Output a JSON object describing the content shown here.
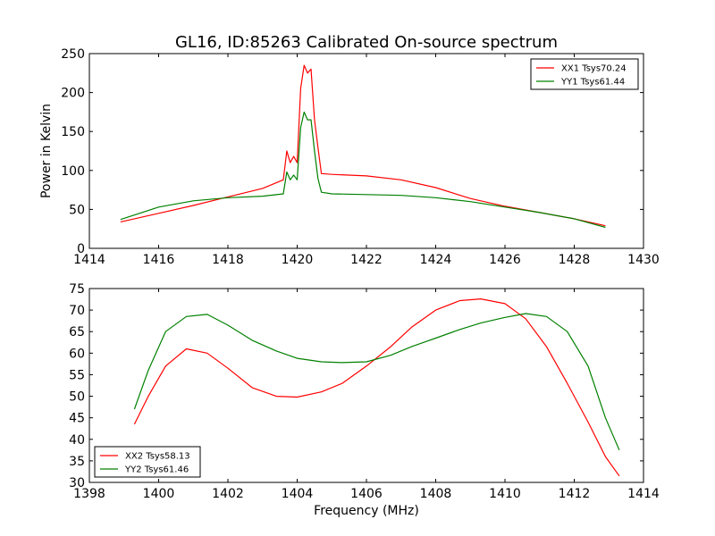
{
  "chart_data": [
    {
      "type": "line",
      "title": "GL16, ID:85263 Calibrated On-source spectrum",
      "xlabel": "",
      "ylabel": "Power in Kelvin",
      "xlim": [
        1414,
        1430
      ],
      "ylim": [
        0,
        250
      ],
      "xticks": [
        "1414",
        "1416",
        "1418",
        "1420",
        "1422",
        "1424",
        "1426",
        "1428",
        "1430"
      ],
      "yticks": [
        "0",
        "50",
        "100",
        "150",
        "200",
        "250"
      ],
      "legend_position": "top-right",
      "grid": false,
      "series": [
        {
          "name": "XX1 Tsys70.24",
          "color": "#ff0000",
          "x": [
            1414.9,
            1416,
            1417,
            1418,
            1419,
            1419.6,
            1419.7,
            1419.8,
            1419.9,
            1420.0,
            1420.1,
            1420.2,
            1420.3,
            1420.4,
            1420.5,
            1420.6,
            1420.7,
            1421,
            1422,
            1423,
            1424,
            1425,
            1426,
            1427,
            1428,
            1428.9
          ],
          "y": [
            34,
            45,
            55,
            66,
            77,
            88,
            125,
            110,
            118,
            110,
            205,
            235,
            225,
            230,
            165,
            130,
            96,
            95,
            93,
            88,
            78,
            64,
            54,
            46,
            38,
            29
          ]
        },
        {
          "name": "YY1 Tsys61.44",
          "color": "#008000",
          "x": [
            1414.9,
            1416,
            1417,
            1418,
            1419,
            1419.6,
            1419.7,
            1419.8,
            1419.9,
            1420.0,
            1420.1,
            1420.2,
            1420.3,
            1420.4,
            1420.5,
            1420.6,
            1420.7,
            1421,
            1422,
            1423,
            1424,
            1425,
            1426,
            1427,
            1428,
            1428.9
          ],
          "y": [
            37,
            53,
            61,
            65,
            67,
            70,
            98,
            88,
            94,
            88,
            155,
            175,
            165,
            165,
            125,
            90,
            72,
            70,
            69,
            68,
            65,
            60,
            53,
            46,
            38,
            27
          ]
        }
      ]
    },
    {
      "type": "line",
      "title": "",
      "xlabel": "Frequency (MHz)",
      "ylabel": "",
      "xlim": [
        1398,
        1414
      ],
      "ylim": [
        30,
        75
      ],
      "xticks": [
        "1398",
        "1400",
        "1402",
        "1404",
        "1406",
        "1408",
        "1410",
        "1412",
        "1414"
      ],
      "yticks": [
        "30",
        "35",
        "40",
        "45",
        "50",
        "55",
        "60",
        "65",
        "70",
        "75"
      ],
      "legend_position": "bottom-left",
      "grid": false,
      "series": [
        {
          "name": "XX2 Tsys58.13",
          "color": "#ff0000",
          "x": [
            1399.3,
            1399.7,
            1400.2,
            1400.8,
            1401.4,
            1402,
            1402.7,
            1403.4,
            1404,
            1404.7,
            1405.3,
            1406,
            1406.7,
            1407.3,
            1408,
            1408.7,
            1409.3,
            1410,
            1410.6,
            1411.2,
            1411.8,
            1412.4,
            1412.9,
            1413.3
          ],
          "y": [
            43.5,
            50,
            57,
            61,
            60,
            56.5,
            52,
            50,
            49.8,
            51,
            53,
            57,
            61.5,
            66,
            70,
            72.2,
            72.6,
            71.5,
            68,
            61.5,
            53,
            44,
            36,
            31.5
          ]
        },
        {
          "name": "YY2 Tsys61.46",
          "color": "#008000",
          "x": [
            1399.3,
            1399.7,
            1400.2,
            1400.8,
            1401.4,
            1402,
            1402.7,
            1403.4,
            1404,
            1404.7,
            1405.3,
            1406,
            1406.7,
            1407.3,
            1408,
            1408.7,
            1409.3,
            1410,
            1410.6,
            1411.2,
            1411.8,
            1412.4,
            1412.9,
            1413.3
          ],
          "y": [
            47,
            56,
            65,
            68.5,
            69,
            66.5,
            63,
            60.5,
            58.8,
            58,
            57.8,
            58,
            59.5,
            61.5,
            63.5,
            65.5,
            67,
            68.3,
            69.2,
            68.5,
            65,
            57,
            45,
            37.5
          ]
        }
      ]
    }
  ]
}
